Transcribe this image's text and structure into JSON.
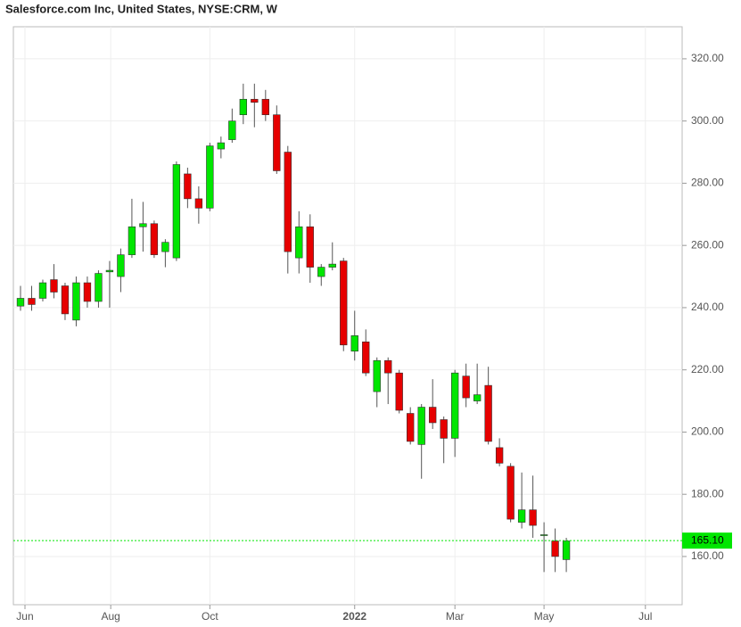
{
  "chart_data": {
    "type": "candlestick",
    "title": "Salesforce.com Inc, United States, NYSE:CRM, W",
    "x": [
      0,
      1,
      2,
      3,
      4,
      5,
      6,
      7,
      8,
      9,
      10,
      11,
      12,
      13,
      14,
      15,
      16,
      17,
      18,
      19,
      20,
      21,
      22,
      23,
      24,
      25,
      26,
      27,
      28,
      29,
      30,
      31,
      32,
      33,
      34,
      35,
      36,
      37,
      38,
      39,
      40,
      41,
      42,
      43,
      44,
      45,
      46,
      47,
      48,
      49
    ],
    "open": [
      240.5,
      243,
      243,
      249,
      247,
      236,
      248,
      242,
      251.5,
      250,
      257,
      266,
      267,
      258,
      256,
      283,
      275,
      272,
      291,
      294,
      302,
      307,
      307,
      302,
      290,
      256,
      266,
      250,
      253,
      255,
      226,
      229,
      213,
      223,
      219,
      206,
      196,
      208,
      204,
      198,
      218,
      210,
      215,
      195,
      189,
      171,
      175,
      167,
      165,
      159
    ],
    "high": [
      247,
      247,
      249,
      254,
      248,
      250,
      250,
      252,
      255,
      259,
      275,
      274,
      268,
      262,
      287,
      285,
      279,
      293,
      295,
      304,
      312,
      312,
      310,
      305,
      292,
      271,
      270,
      254,
      261,
      256,
      239,
      233,
      224,
      224,
      220,
      208,
      209,
      217,
      205,
      220,
      222,
      222,
      221,
      198,
      190,
      187,
      186,
      171,
      169,
      166
    ],
    "low": [
      239,
      239,
      242,
      243,
      236,
      234,
      240,
      240,
      240,
      245,
      256,
      258,
      256,
      253,
      255,
      272,
      267,
      271,
      288,
      293,
      299,
      298,
      300,
      283,
      251,
      251,
      248,
      247,
      252,
      226,
      223,
      218,
      208,
      209,
      206,
      196,
      185,
      201,
      190,
      192,
      208,
      209,
      196,
      189,
      171,
      169,
      166,
      155,
      155,
      155
    ],
    "close": [
      243,
      241,
      248,
      245,
      238,
      248,
      242,
      251,
      252,
      257,
      266,
      267,
      257,
      261,
      286,
      275,
      272,
      292,
      293,
      300,
      307,
      306,
      302,
      284,
      258,
      266,
      253,
      253,
      254,
      228,
      231,
      219,
      223,
      219,
      207,
      197,
      208,
      203,
      198,
      219,
      211,
      212,
      197,
      190,
      172,
      175,
      170,
      167,
      160,
      165
    ],
    "up_color": "#00e600",
    "down_color": "#e60000",
    "last_price": {
      "value": 165.1,
      "label": "165.10"
    },
    "last_price_color": "#00e600",
    "xlim": [
      -0.64,
      59.4
    ],
    "xticks": [
      {
        "value": 0.4,
        "label": "Jun"
      },
      {
        "value": 8.1,
        "label": "Aug"
      },
      {
        "value": 17.0,
        "label": "Oct"
      },
      {
        "value": 30.0,
        "label": "2022"
      },
      {
        "value": 39.0,
        "label": "Mar"
      },
      {
        "value": 47.0,
        "label": "May"
      },
      {
        "value": 56.1,
        "label": "Jul"
      }
    ],
    "ylim": [
      144.5,
      330.3
    ],
    "yticks": [
      {
        "value": 160,
        "label": "160.00"
      },
      {
        "value": 180,
        "label": "180.00"
      },
      {
        "value": 200,
        "label": "200.00"
      },
      {
        "value": 220,
        "label": "220.00"
      },
      {
        "value": 240,
        "label": "240.00"
      },
      {
        "value": 260,
        "label": "260.00"
      },
      {
        "value": 280,
        "label": "280.00"
      },
      {
        "value": 300,
        "label": "300.00"
      },
      {
        "value": 320,
        "label": "320.00"
      }
    ],
    "grid": true
  }
}
